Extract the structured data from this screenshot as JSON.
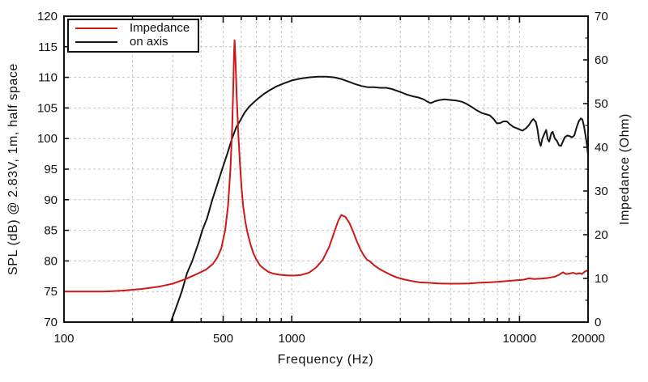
{
  "figure": {
    "background": "#ffffff",
    "axis_color": "#111111",
    "grid_color": "#c6c6c6"
  },
  "chart_data": {
    "type": "line",
    "title": "",
    "xlabel": "Frequency (Hz)",
    "ylabel_left": "SPL (dB) @ 2.83V, 1m, half space",
    "ylabel_right": "Impedance (Ohm)",
    "x_scale": "log",
    "xlim": [
      100,
      20000
    ],
    "ylim_left": [
      70,
      120
    ],
    "ylim_right": [
      0,
      70
    ],
    "x_ticks_labeled": [
      100,
      500,
      1000,
      10000,
      20000
    ],
    "x_tick_labels": [
      "100",
      "500",
      "1000",
      "10000",
      "20000"
    ],
    "x_ticks_minor": [
      200,
      300,
      400,
      600,
      700,
      800,
      900,
      2000,
      3000,
      4000,
      5000,
      6000,
      7000,
      8000,
      9000
    ],
    "y_ticks_left": [
      70,
      75,
      80,
      85,
      90,
      95,
      100,
      105,
      110,
      115,
      120
    ],
    "y_ticks_right": [
      0,
      10,
      20,
      30,
      40,
      50,
      60,
      70
    ],
    "y_ticks_right_minor": [
      5,
      15,
      25,
      35,
      45,
      55,
      65
    ],
    "grid": true,
    "legend_position": "top-left",
    "series": [
      {
        "name": "Impedance",
        "color": "#cf1717",
        "axis": "right",
        "unit": "Ohm",
        "points": [
          [
            100,
            7.0
          ],
          [
            120,
            7.0
          ],
          [
            150,
            7.0
          ],
          [
            180,
            7.2
          ],
          [
            220,
            7.6
          ],
          [
            260,
            8.1
          ],
          [
            300,
            8.8
          ],
          [
            340,
            9.8
          ],
          [
            380,
            10.9
          ],
          [
            420,
            12.0
          ],
          [
            450,
            13.3
          ],
          [
            470,
            14.7
          ],
          [
            490,
            16.8
          ],
          [
            510,
            21.0
          ],
          [
            525,
            26.6
          ],
          [
            538,
            35.0
          ],
          [
            548,
            44.8
          ],
          [
            554,
            54.6
          ],
          [
            558,
            61.6
          ],
          [
            561,
            64.5
          ],
          [
            566,
            60.2
          ],
          [
            573,
            51.8
          ],
          [
            582,
            43.4
          ],
          [
            592,
            36.4
          ],
          [
            602,
            30.8
          ],
          [
            612,
            26.6
          ],
          [
            625,
            23.1
          ],
          [
            640,
            20.3
          ],
          [
            658,
            17.9
          ],
          [
            678,
            15.8
          ],
          [
            700,
            14.3
          ],
          [
            725,
            13.0
          ],
          [
            755,
            12.2
          ],
          [
            790,
            11.5
          ],
          [
            830,
            11.1
          ],
          [
            880,
            10.85
          ],
          [
            950,
            10.7
          ],
          [
            1020,
            10.65
          ],
          [
            1100,
            10.8
          ],
          [
            1190,
            11.3
          ],
          [
            1280,
            12.5
          ],
          [
            1370,
            14.3
          ],
          [
            1460,
            17.2
          ],
          [
            1540,
            20.7
          ],
          [
            1600,
            23.2
          ],
          [
            1650,
            24.5
          ],
          [
            1720,
            24.1
          ],
          [
            1790,
            22.7
          ],
          [
            1860,
            20.7
          ],
          [
            1930,
            18.5
          ],
          [
            2000,
            16.7
          ],
          [
            2070,
            15.3
          ],
          [
            2140,
            14.3
          ],
          [
            2200,
            13.9
          ],
          [
            2300,
            13.0
          ],
          [
            2420,
            12.2
          ],
          [
            2560,
            11.5
          ],
          [
            2720,
            10.8
          ],
          [
            2900,
            10.2
          ],
          [
            3100,
            9.8
          ],
          [
            3350,
            9.4
          ],
          [
            3650,
            9.1
          ],
          [
            4000,
            9.0
          ],
          [
            4400,
            8.85
          ],
          [
            4900,
            8.8
          ],
          [
            5400,
            8.8
          ],
          [
            6000,
            8.85
          ],
          [
            6600,
            9.0
          ],
          [
            7300,
            9.1
          ],
          [
            8000,
            9.2
          ],
          [
            8800,
            9.4
          ],
          [
            9600,
            9.55
          ],
          [
            10400,
            9.7
          ],
          [
            11000,
            10.0
          ],
          [
            11600,
            9.85
          ],
          [
            12400,
            9.95
          ],
          [
            13300,
            10.1
          ],
          [
            14300,
            10.4
          ],
          [
            15000,
            10.9
          ],
          [
            15500,
            11.4
          ],
          [
            16000,
            11.0
          ],
          [
            16500,
            11.1
          ],
          [
            17200,
            11.3
          ],
          [
            17800,
            11.0
          ],
          [
            18300,
            11.2
          ],
          [
            18800,
            11.0
          ],
          [
            19300,
            11.5
          ],
          [
            20000,
            11.9
          ]
        ]
      },
      {
        "name": "on axis",
        "color": "#151515",
        "axis": "left",
        "unit": "dB",
        "points": [
          [
            293,
            69.8
          ],
          [
            310,
            72.3
          ],
          [
            329,
            75.0
          ],
          [
            347,
            78.0
          ],
          [
            366,
            80.0
          ],
          [
            390,
            83.0
          ],
          [
            405,
            85.0
          ],
          [
            425,
            87.0
          ],
          [
            448,
            90.0
          ],
          [
            470,
            92.4
          ],
          [
            495,
            95.0
          ],
          [
            520,
            97.4
          ],
          [
            547,
            100.0
          ],
          [
            570,
            101.8
          ],
          [
            595,
            103.0
          ],
          [
            620,
            104.2
          ],
          [
            650,
            105.2
          ],
          [
            680,
            105.9
          ],
          [
            715,
            106.6
          ],
          [
            755,
            107.3
          ],
          [
            800,
            107.9
          ],
          [
            855,
            108.5
          ],
          [
            920,
            109.0
          ],
          [
            1000,
            109.5
          ],
          [
            1090,
            109.8
          ],
          [
            1190,
            110.0
          ],
          [
            1300,
            110.1
          ],
          [
            1420,
            110.1
          ],
          [
            1540,
            110.0
          ],
          [
            1660,
            109.7
          ],
          [
            1780,
            109.3
          ],
          [
            1900,
            108.9
          ],
          [
            2020,
            108.6
          ],
          [
            2150,
            108.4
          ],
          [
            2300,
            108.4
          ],
          [
            2450,
            108.3
          ],
          [
            2600,
            108.3
          ],
          [
            2750,
            108.1
          ],
          [
            2900,
            107.8
          ],
          [
            3050,
            107.5
          ],
          [
            3200,
            107.2
          ],
          [
            3400,
            106.9
          ],
          [
            3600,
            106.7
          ],
          [
            3800,
            106.4
          ],
          [
            3950,
            106.0
          ],
          [
            4080,
            105.8
          ],
          [
            4250,
            106.1
          ],
          [
            4450,
            106.3
          ],
          [
            4700,
            106.4
          ],
          [
            5000,
            106.3
          ],
          [
            5300,
            106.2
          ],
          [
            5600,
            106.0
          ],
          [
            5900,
            105.6
          ],
          [
            6200,
            105.1
          ],
          [
            6500,
            104.6
          ],
          [
            6800,
            104.2
          ],
          [
            7100,
            104.0
          ],
          [
            7400,
            103.8
          ],
          [
            7700,
            103.2
          ],
          [
            7950,
            102.5
          ],
          [
            8200,
            102.5
          ],
          [
            8500,
            102.8
          ],
          [
            8800,
            102.8
          ],
          [
            9100,
            102.3
          ],
          [
            9400,
            101.9
          ],
          [
            9700,
            101.7
          ],
          [
            10000,
            101.5
          ],
          [
            10300,
            101.3
          ],
          [
            10700,
            101.7
          ],
          [
            11000,
            102.2
          ],
          [
            11300,
            102.9
          ],
          [
            11500,
            103.2
          ],
          [
            11800,
            102.7
          ],
          [
            12000,
            101.5
          ],
          [
            12200,
            99.6
          ],
          [
            12400,
            98.8
          ],
          [
            12600,
            100.0
          ],
          [
            12900,
            100.9
          ],
          [
            13100,
            101.4
          ],
          [
            13300,
            99.9
          ],
          [
            13500,
            99.5
          ],
          [
            13800,
            100.9
          ],
          [
            14000,
            101.1
          ],
          [
            14300,
            100.0
          ],
          [
            14600,
            99.6
          ],
          [
            14900,
            98.9
          ],
          [
            15200,
            98.8
          ],
          [
            15500,
            99.5
          ],
          [
            15800,
            100.2
          ],
          [
            16200,
            100.5
          ],
          [
            16600,
            100.4
          ],
          [
            17000,
            100.2
          ],
          [
            17400,
            100.5
          ],
          [
            17800,
            101.8
          ],
          [
            18200,
            102.8
          ],
          [
            18600,
            103.3
          ],
          [
            18900,
            103.1
          ],
          [
            19200,
            102.0
          ],
          [
            19500,
            100.5
          ],
          [
            19800,
            98.8
          ],
          [
            20000,
            97.2
          ]
        ]
      }
    ]
  }
}
